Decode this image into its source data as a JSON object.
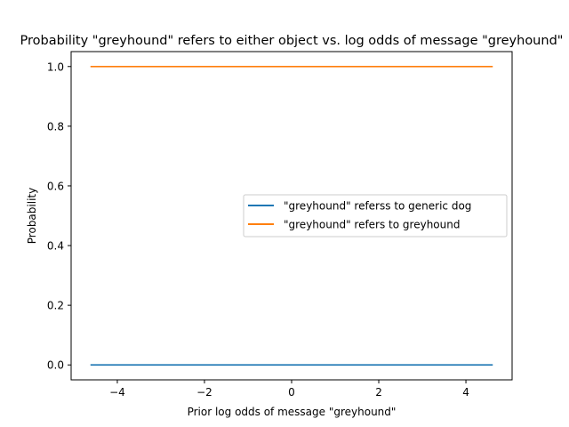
{
  "chart_data": {
    "type": "line",
    "title": "Probability \"greyhound\" refers to either object vs. log odds of message \"greyhound\"",
    "xlabel": "Prior log odds of message \"greyhound\"",
    "ylabel": "Probability",
    "xlim": [
      -5.06,
      5.06
    ],
    "ylim": [
      -0.05,
      1.05
    ],
    "xticks": [
      -4,
      -2,
      0,
      2,
      4
    ],
    "xtick_labels": [
      "−4",
      "−2",
      "0",
      "2",
      "4"
    ],
    "yticks": [
      0.0,
      0.2,
      0.4,
      0.6,
      0.8,
      1.0
    ],
    "ytick_labels": [
      "0.0",
      "0.2",
      "0.4",
      "0.6",
      "0.8",
      "1.0"
    ],
    "grid": false,
    "legend_position": "center-right",
    "x": [
      -4.6,
      -3.45,
      -2.3,
      -1.15,
      0,
      1.15,
      2.3,
      3.45,
      4.6
    ],
    "series": [
      {
        "name": "\"greyhound\" referss to generic dog",
        "color": "#1f77b4",
        "values": [
          0,
          0,
          0,
          0,
          0,
          0,
          0,
          0,
          0
        ]
      },
      {
        "name": "\"greyhound\" refers to greyhound",
        "color": "#ff7f0e",
        "values": [
          1,
          1,
          1,
          1,
          1,
          1,
          1,
          1,
          1
        ]
      }
    ]
  }
}
